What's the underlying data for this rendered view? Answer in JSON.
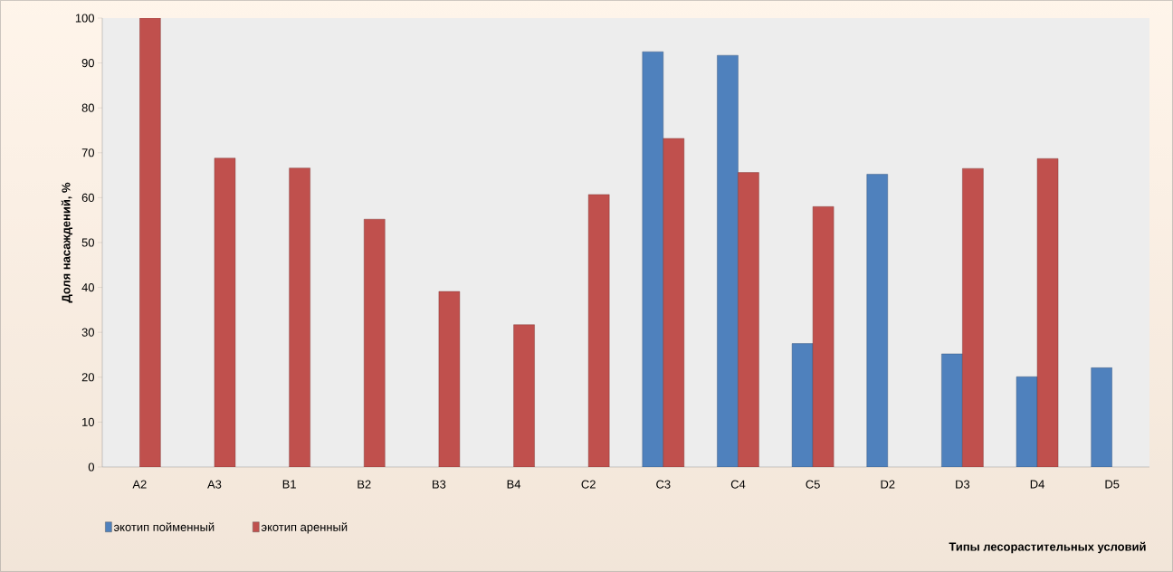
{
  "chart_data": {
    "type": "bar",
    "xlabel": "Типы лесорастительных условий",
    "ylabel": "Доля насаждений, %",
    "categories": [
      "A2",
      "A3",
      "B1",
      "B2",
      "B3",
      "B4",
      "C2",
      "C3",
      "C4",
      "C5",
      "D2",
      "D3",
      "D4",
      "D5"
    ],
    "series": [
      {
        "name": "экотип пойменный",
        "color": "#4f81bd",
        "values": [
          null,
          null,
          null,
          null,
          null,
          null,
          null,
          92.5,
          91.7,
          27.5,
          65.2,
          25.2,
          20.1,
          22.1
        ]
      },
      {
        "name": "экотип аренный",
        "color": "#c0504d",
        "values": [
          100,
          68.8,
          66.6,
          55.2,
          39.1,
          31.7,
          60.7,
          73.2,
          65.6,
          58,
          null,
          66.5,
          68.7,
          null
        ]
      }
    ],
    "ylim": [
      0,
      100
    ],
    "yticks": [
      0,
      10,
      20,
      30,
      40,
      50,
      60,
      70,
      80,
      90,
      100
    ],
    "grid": false,
    "legend": "bottom left"
  }
}
